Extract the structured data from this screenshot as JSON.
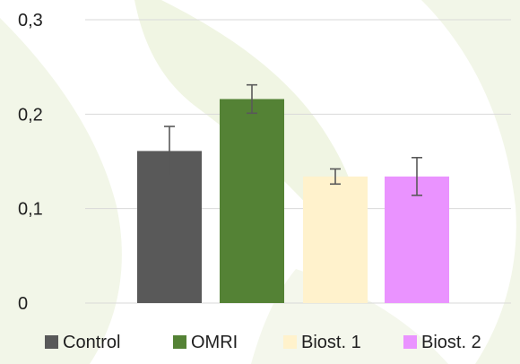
{
  "chart_data": {
    "type": "bar",
    "title": "",
    "xlabel": "",
    "ylabel": "",
    "categories": [
      "Control",
      "OMRI",
      "Biost. 1",
      "Biost. 2"
    ],
    "values": [
      0.161,
      0.216,
      0.134,
      0.134
    ],
    "error": [
      0.026,
      0.015,
      0.008,
      0.02
    ],
    "colors": [
      "#595959",
      "#548235",
      "#fff2cc",
      "#ea93ff"
    ],
    "ylim": [
      0,
      0.3
    ],
    "yticks": [
      0,
      0.1,
      0.2,
      0.3
    ],
    "ytick_labels": [
      "0",
      "0,1",
      "0,2",
      "0,3"
    ],
    "grid": true,
    "legend": {
      "position": "bottom",
      "entries": [
        "Control",
        "OMRI",
        "Biost. 1",
        "Biost. 2"
      ]
    }
  },
  "background": {
    "base_color": "#ffffff",
    "accent_color": "#eef3e1",
    "watermark": "leaf-pattern"
  }
}
